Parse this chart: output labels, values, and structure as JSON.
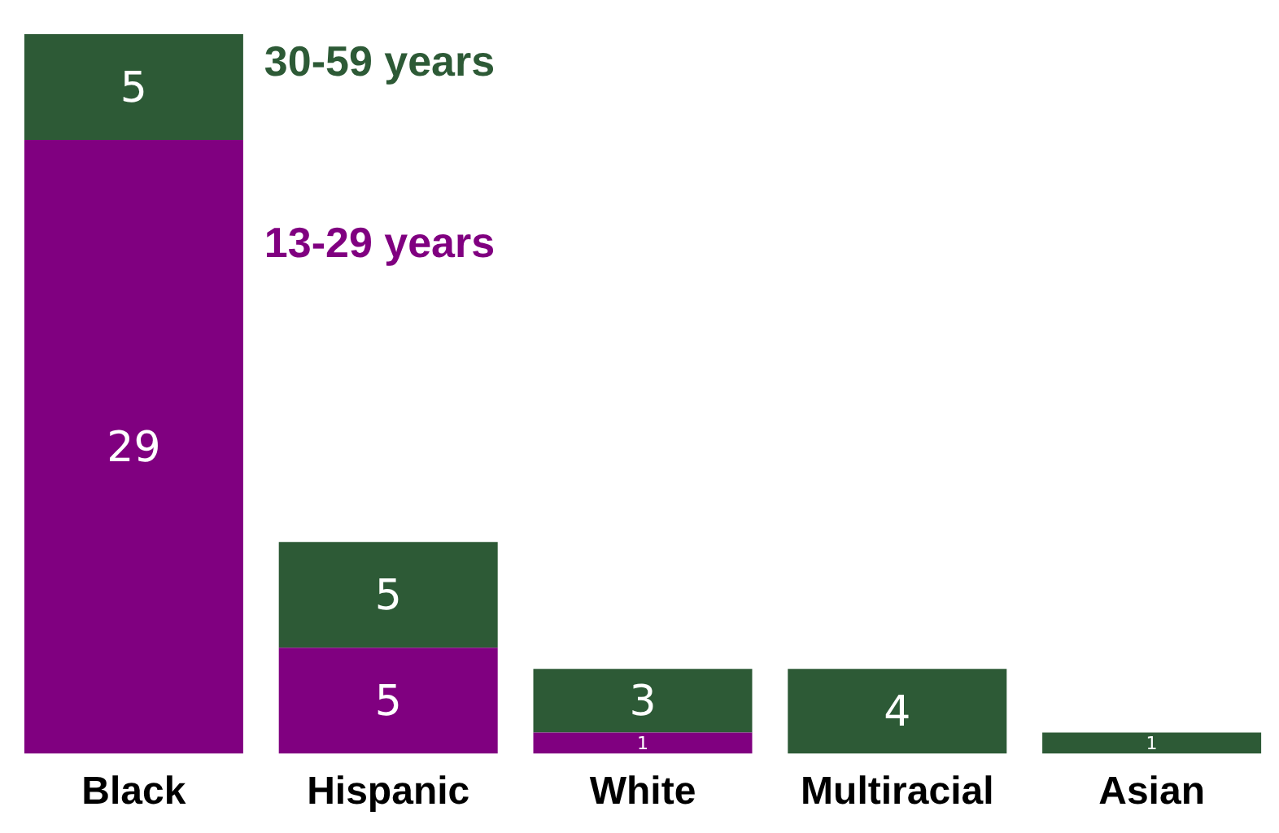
{
  "chart_data": {
    "type": "bar",
    "stacked": true,
    "categories": [
      "Black",
      "Hispanic",
      "White",
      "Multiracial",
      "Asian"
    ],
    "series": [
      {
        "name": "13-29 years",
        "color": "#800080",
        "values": [
          29,
          5,
          1,
          null,
          null
        ]
      },
      {
        "name": "30-59 years",
        "color": "#2d5a36",
        "values": [
          5,
          5,
          3,
          4,
          1
        ]
      }
    ],
    "data_labels": true,
    "legend": false,
    "grid": false,
    "tick_labels": "x"
  }
}
